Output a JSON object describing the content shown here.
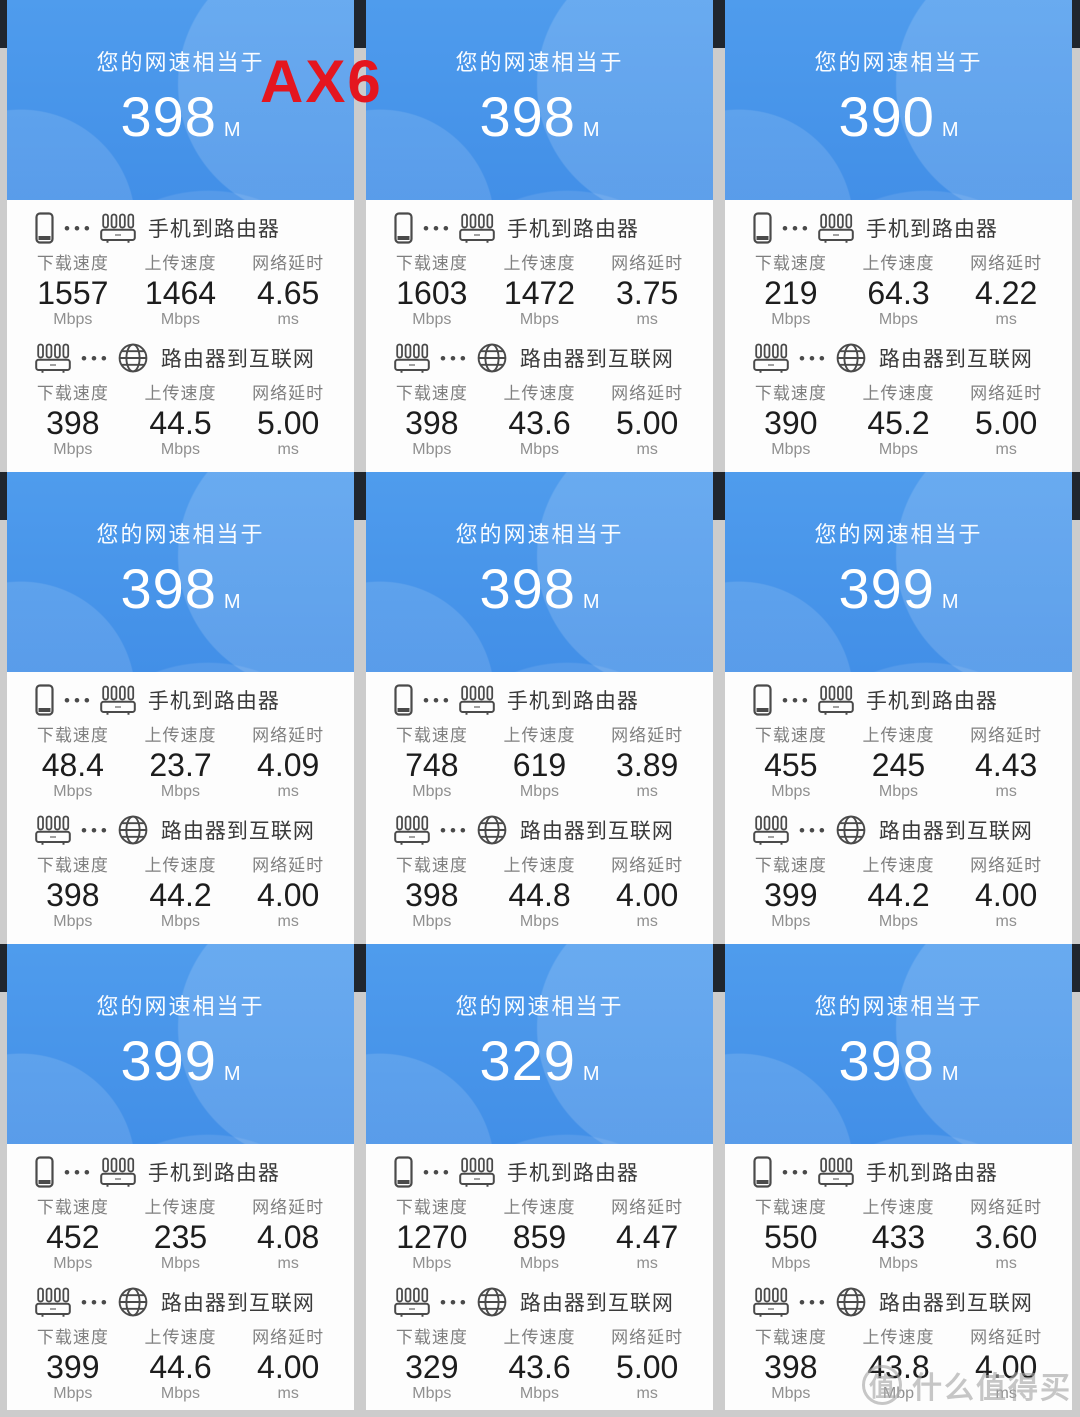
{
  "overlay": {
    "label": "AX6",
    "color": "#e4161f"
  },
  "watermark": {
    "badge": "值",
    "text": "什么值得买"
  },
  "labels": {
    "subtitle": "您的网速相当于",
    "speed_unit": "M",
    "phone_to_router": "手机到路由器",
    "router_to_internet": "路由器到互联网",
    "download": "下载速度",
    "upload": "上传速度",
    "latency": "网络延时"
  },
  "colors": {
    "header_blue": "#4696ea",
    "accent_red": "#e4161f",
    "gutter_gray": "#cccccc",
    "status_bar_dark": "#20262e"
  },
  "cells": [
    {
      "speed": "398",
      "phone_to_router": {
        "download": "1557",
        "download_unit": "Mbps",
        "upload": "1464",
        "upload_unit": "Mbps",
        "latency": "4.65",
        "latency_unit": "ms"
      },
      "router_to_internet": {
        "download": "398",
        "download_unit": "Mbps",
        "upload": "44.5",
        "upload_unit": "Mbps",
        "latency": "5.00",
        "latency_unit": "ms"
      }
    },
    {
      "speed": "398",
      "phone_to_router": {
        "download": "1603",
        "download_unit": "Mbps",
        "upload": "1472",
        "upload_unit": "Mbps",
        "latency": "3.75",
        "latency_unit": "ms"
      },
      "router_to_internet": {
        "download": "398",
        "download_unit": "Mbps",
        "upload": "43.6",
        "upload_unit": "Mbps",
        "latency": "5.00",
        "latency_unit": "ms"
      }
    },
    {
      "speed": "390",
      "phone_to_router": {
        "download": "219",
        "download_unit": "Mbps",
        "upload": "64.3",
        "upload_unit": "Mbps",
        "latency": "4.22",
        "latency_unit": "ms"
      },
      "router_to_internet": {
        "download": "390",
        "download_unit": "Mbps",
        "upload": "45.2",
        "upload_unit": "Mbps",
        "latency": "5.00",
        "latency_unit": "ms"
      }
    },
    {
      "speed": "398",
      "phone_to_router": {
        "download": "48.4",
        "download_unit": "Mbps",
        "upload": "23.7",
        "upload_unit": "Mbps",
        "latency": "4.09",
        "latency_unit": "ms"
      },
      "router_to_internet": {
        "download": "398",
        "download_unit": "Mbps",
        "upload": "44.2",
        "upload_unit": "Mbps",
        "latency": "4.00",
        "latency_unit": "ms"
      }
    },
    {
      "speed": "398",
      "phone_to_router": {
        "download": "748",
        "download_unit": "Mbps",
        "upload": "619",
        "upload_unit": "Mbps",
        "latency": "3.89",
        "latency_unit": "ms"
      },
      "router_to_internet": {
        "download": "398",
        "download_unit": "Mbps",
        "upload": "44.8",
        "upload_unit": "Mbps",
        "latency": "4.00",
        "latency_unit": "ms"
      }
    },
    {
      "speed": "399",
      "phone_to_router": {
        "download": "455",
        "download_unit": "Mbps",
        "upload": "245",
        "upload_unit": "Mbps",
        "latency": "4.43",
        "latency_unit": "ms"
      },
      "router_to_internet": {
        "download": "399",
        "download_unit": "Mbps",
        "upload": "44.2",
        "upload_unit": "Mbps",
        "latency": "4.00",
        "latency_unit": "ms"
      }
    },
    {
      "speed": "399",
      "phone_to_router": {
        "download": "452",
        "download_unit": "Mbps",
        "upload": "235",
        "upload_unit": "Mbps",
        "latency": "4.08",
        "latency_unit": "ms"
      },
      "router_to_internet": {
        "download": "399",
        "download_unit": "Mbps",
        "upload": "44.6",
        "upload_unit": "Mbps",
        "latency": "4.00",
        "latency_unit": "ms"
      }
    },
    {
      "speed": "329",
      "phone_to_router": {
        "download": "1270",
        "download_unit": "Mbps",
        "upload": "859",
        "upload_unit": "Mbps",
        "latency": "4.47",
        "latency_unit": "ms"
      },
      "router_to_internet": {
        "download": "329",
        "download_unit": "Mbps",
        "upload": "43.6",
        "upload_unit": "Mbps",
        "latency": "5.00",
        "latency_unit": "ms"
      }
    },
    {
      "speed": "398",
      "phone_to_router": {
        "download": "550",
        "download_unit": "Mbps",
        "upload": "433",
        "upload_unit": "Mbps",
        "latency": "3.60",
        "latency_unit": "ms"
      },
      "router_to_internet": {
        "download": "398",
        "download_unit": "Mbps",
        "upload": "43.8",
        "upload_unit": "Mbp",
        "latency": "4.00",
        "latency_unit": "ms"
      }
    }
  ]
}
